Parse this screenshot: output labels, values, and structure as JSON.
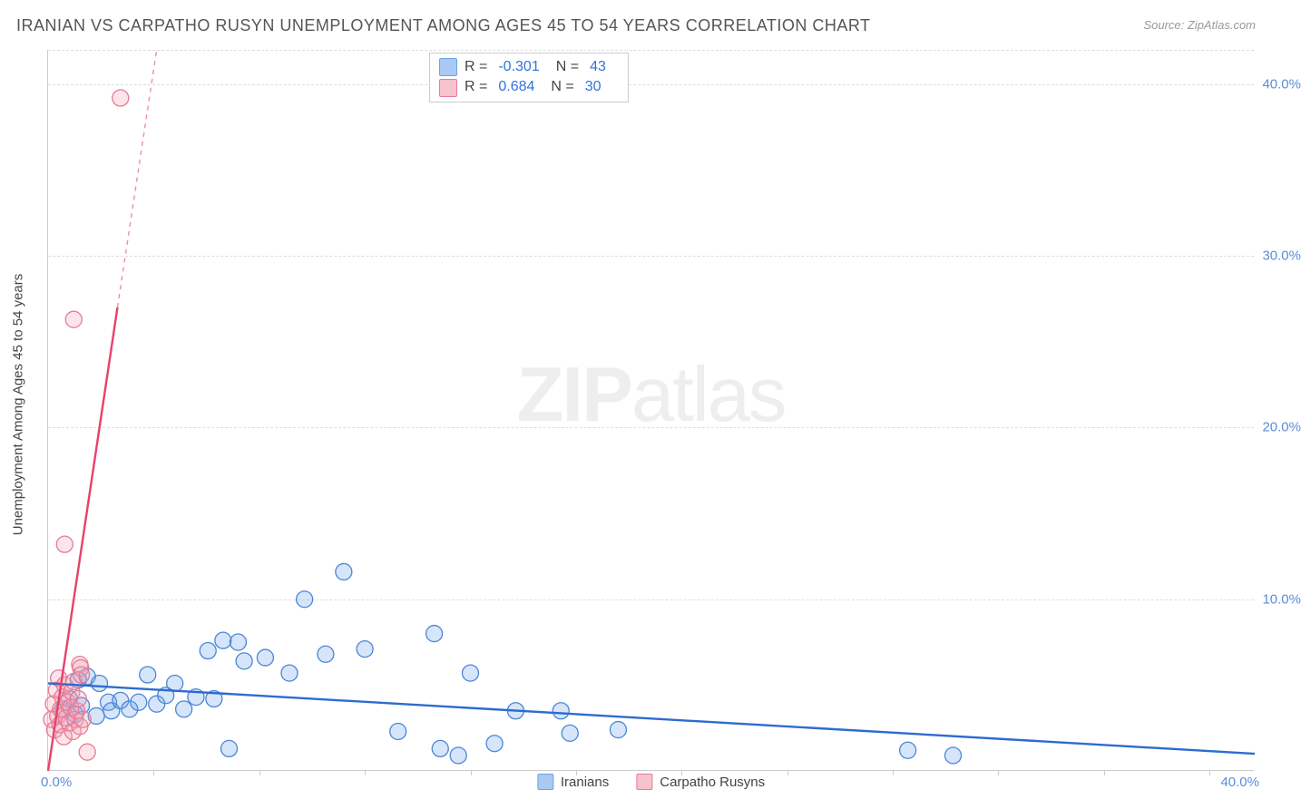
{
  "chart": {
    "type": "scatter",
    "title": "IRANIAN VS CARPATHO RUSYN UNEMPLOYMENT AMONG AGES 45 TO 54 YEARS CORRELATION CHART",
    "source": "Source: ZipAtlas.com",
    "ylabel": "Unemployment Among Ages 45 to 54 years",
    "watermark_bold": "ZIP",
    "watermark_light": "atlas",
    "background_color": "#ffffff",
    "grid_color": "#dddddd",
    "axis_color": "#cccccc",
    "tick_color": "#5b8dd6",
    "label_color": "#444444",
    "title_color": "#555555",
    "title_fontsize": 18,
    "label_fontsize": 15,
    "xlim": [
      0,
      40
    ],
    "ylim": [
      0,
      42
    ],
    "xtick_start": "0.0%",
    "xtick_end": "40.0%",
    "xtick_positions": [
      3.5,
      7,
      10.5,
      14,
      17.5,
      21,
      24.5,
      28,
      31.5,
      35,
      38.5
    ],
    "yticks": [
      {
        "v": 10,
        "label": "10.0%"
      },
      {
        "v": 20,
        "label": "20.0%"
      },
      {
        "v": 30,
        "label": "30.0%"
      },
      {
        "v": 40,
        "label": "40.0%"
      }
    ],
    "marker_radius": 9,
    "marker_fill_opacity": 0.28,
    "marker_stroke_width": 1.3,
    "trend_line_width": 2.4,
    "series": [
      {
        "name": "Iranians",
        "color": "#6aa3e8",
        "stroke": "#4a86d6",
        "trend_color": "#2d6bd1",
        "points": [
          [
            0.5,
            3.6
          ],
          [
            0.7,
            4.2
          ],
          [
            0.9,
            3.3
          ],
          [
            1.0,
            5.3
          ],
          [
            1.1,
            3.8
          ],
          [
            1.3,
            5.5
          ],
          [
            1.6,
            3.2
          ],
          [
            1.7,
            5.1
          ],
          [
            2.0,
            4.0
          ],
          [
            2.1,
            3.5
          ],
          [
            2.4,
            4.1
          ],
          [
            2.7,
            3.6
          ],
          [
            3.0,
            4.0
          ],
          [
            3.3,
            5.6
          ],
          [
            3.6,
            3.9
          ],
          [
            3.9,
            4.4
          ],
          [
            4.2,
            5.1
          ],
          [
            4.5,
            3.6
          ],
          [
            4.9,
            4.3
          ],
          [
            5.3,
            7.0
          ],
          [
            5.5,
            4.2
          ],
          [
            5.8,
            7.6
          ],
          [
            6.0,
            1.3
          ],
          [
            6.3,
            7.5
          ],
          [
            6.5,
            6.4
          ],
          [
            7.2,
            6.6
          ],
          [
            8.0,
            5.7
          ],
          [
            8.5,
            10.0
          ],
          [
            9.2,
            6.8
          ],
          [
            9.8,
            11.6
          ],
          [
            10.5,
            7.1
          ],
          [
            11.6,
            2.3
          ],
          [
            12.8,
            8.0
          ],
          [
            13.0,
            1.3
          ],
          [
            13.6,
            0.9
          ],
          [
            14.0,
            5.7
          ],
          [
            14.8,
            1.6
          ],
          [
            15.5,
            3.5
          ],
          [
            17.0,
            3.5
          ],
          [
            17.3,
            2.2
          ],
          [
            18.9,
            2.4
          ],
          [
            28.5,
            1.2
          ],
          [
            30.0,
            0.9
          ]
        ],
        "trend": {
          "x1": 0,
          "y1": 5.1,
          "x2": 40,
          "y2": 1.0
        }
      },
      {
        "name": "Carpatho Rusyns",
        "color": "#f2a3b6",
        "stroke": "#e87a93",
        "trend_color": "#e8416a",
        "points": [
          [
            0.12,
            3.0
          ],
          [
            0.18,
            3.9
          ],
          [
            0.22,
            2.4
          ],
          [
            0.28,
            4.7
          ],
          [
            0.32,
            3.2
          ],
          [
            0.35,
            5.4
          ],
          [
            0.4,
            2.7
          ],
          [
            0.42,
            3.6
          ],
          [
            0.48,
            4.3
          ],
          [
            0.52,
            2.0
          ],
          [
            0.55,
            5.0
          ],
          [
            0.6,
            3.1
          ],
          [
            0.65,
            4.0
          ],
          [
            0.7,
            2.8
          ],
          [
            0.75,
            3.7
          ],
          [
            0.78,
            4.6
          ],
          [
            0.82,
            2.3
          ],
          [
            0.85,
            5.2
          ],
          [
            0.9,
            3.0
          ],
          [
            0.95,
            3.5
          ],
          [
            1.0,
            4.2
          ],
          [
            1.05,
            2.6
          ],
          [
            1.05,
            6.2
          ],
          [
            1.08,
            6.0
          ],
          [
            1.1,
            5.6
          ],
          [
            1.15,
            3.0
          ],
          [
            1.3,
            1.1
          ],
          [
            0.55,
            13.2
          ],
          [
            0.85,
            26.3
          ],
          [
            2.4,
            39.2
          ]
        ],
        "trend": {
          "x1": 0,
          "y1": 0.0,
          "x2": 3.6,
          "y2": 42.0
        }
      }
    ],
    "legend_top": [
      {
        "swatch": "#a9c9f2",
        "border": "#6aa3e8",
        "R": "-0.301",
        "N": "43"
      },
      {
        "swatch": "#f6c2ce",
        "border": "#e87a93",
        "R": "0.684",
        "N": "30"
      }
    ],
    "legend_bottom": [
      {
        "swatch": "#a9c9f2",
        "border": "#6aa3e8",
        "label": "Iranians"
      },
      {
        "swatch": "#f6c2ce",
        "border": "#e87a93",
        "label": "Carpatho Rusyns"
      }
    ]
  }
}
